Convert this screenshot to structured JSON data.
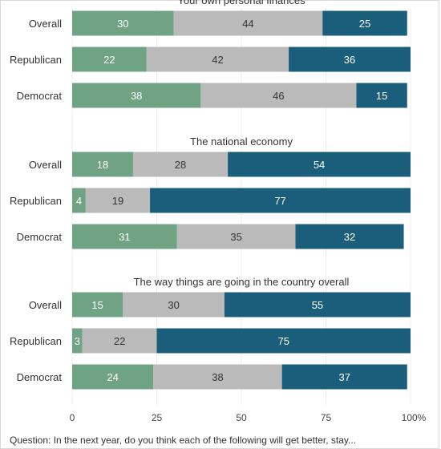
{
  "chart_data": {
    "type": "bar",
    "orientation": "horizontal",
    "stacked": true,
    "xlim": [
      0,
      100
    ],
    "xticks": [
      "0",
      "25",
      "50",
      "75",
      "100%"
    ],
    "colors": [
      "#6fa384",
      "#bababa",
      "#1a5e7c"
    ],
    "panels": [
      {
        "title": "Your own personal finances",
        "categories": [
          "Overall",
          "Republican",
          "Democrat"
        ],
        "rows": [
          [
            30,
            44,
            25
          ],
          [
            22,
            42,
            36
          ],
          [
            38,
            46,
            15
          ]
        ]
      },
      {
        "title": "The national economy",
        "categories": [
          "Overall",
          "Republican",
          "Democrat"
        ],
        "rows": [
          [
            18,
            28,
            54
          ],
          [
            4,
            19,
            77
          ],
          [
            31,
            35,
            32
          ]
        ]
      },
      {
        "title": "The way things are going in the country overall",
        "categories": [
          "Overall",
          "Republican",
          "Democrat"
        ],
        "rows": [
          [
            15,
            30,
            55
          ],
          [
            3,
            22,
            75
          ],
          [
            24,
            38,
            37
          ]
        ]
      }
    ]
  },
  "footnote": "Question: In the next year, do you think each of the following will get better, stay..."
}
